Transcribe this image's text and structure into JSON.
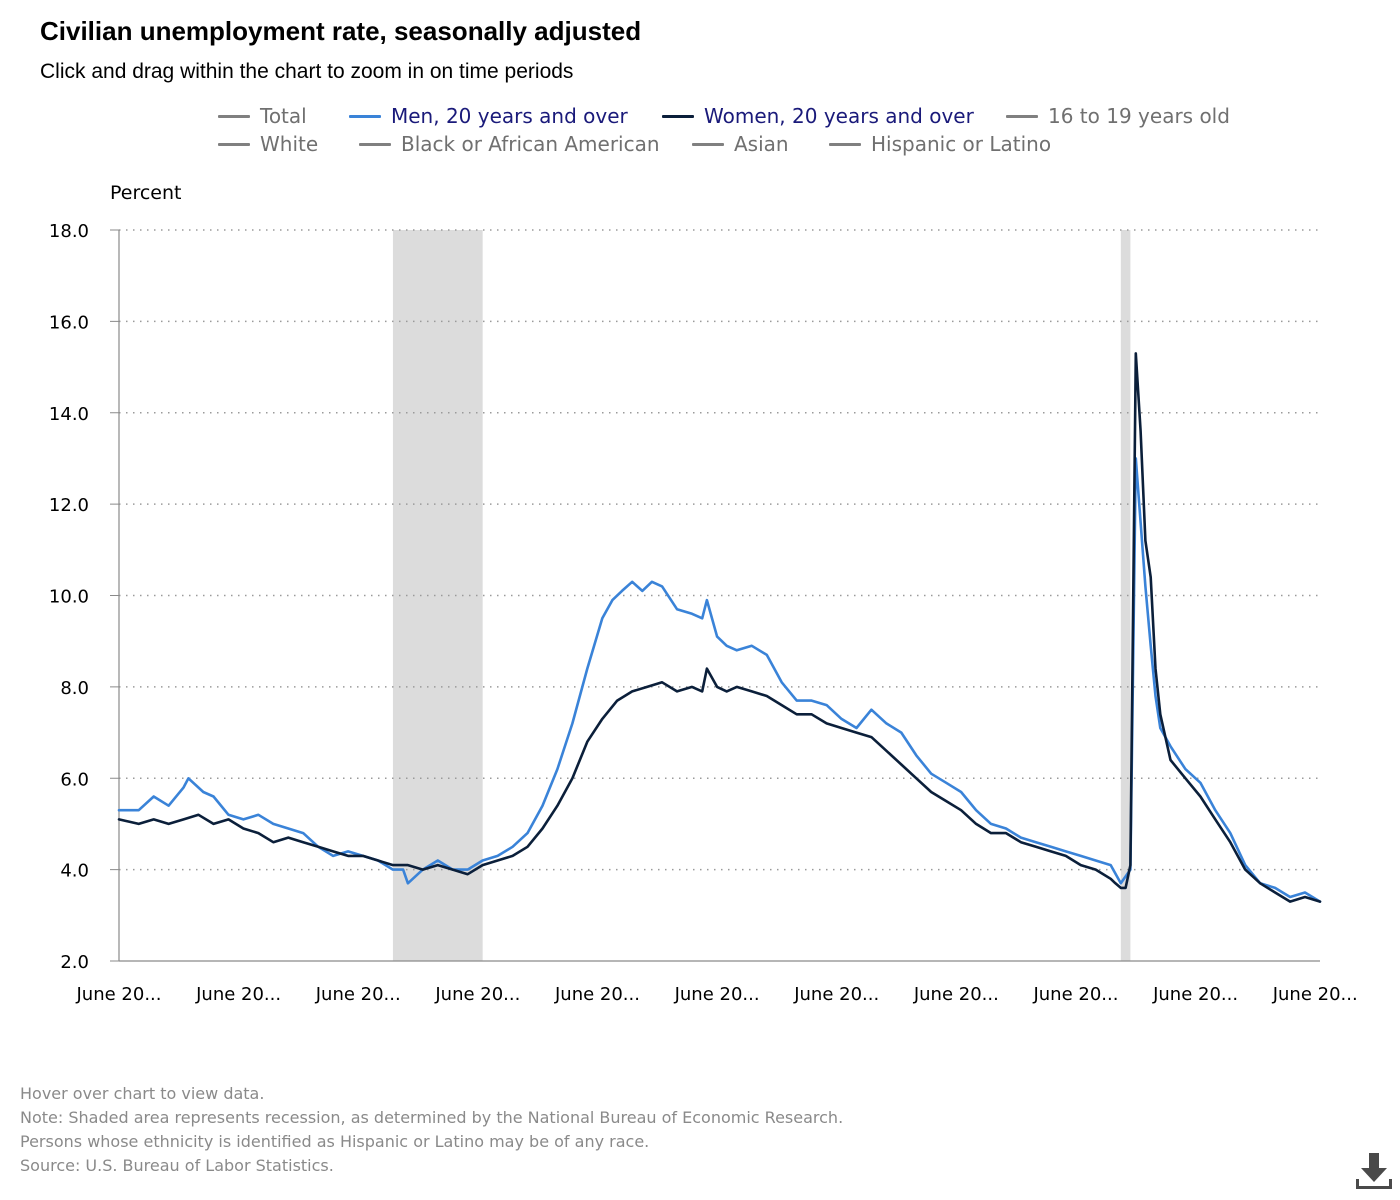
{
  "header": {
    "title": "Civilian unemployment rate, seasonally adjusted",
    "subtitle": "Click and drag within the chart to zoom in on time periods"
  },
  "legend": [
    {
      "label": "Total",
      "color": "#808080",
      "active": false
    },
    {
      "label": "Men, 20 years and over",
      "color": "#3A83D8",
      "active": true
    },
    {
      "label": "Women, 20 years and over",
      "color": "#0B1F3A",
      "active": true
    },
    {
      "label": "16 to 19 years old",
      "color": "#808080",
      "active": false
    },
    {
      "label": "White",
      "color": "#808080",
      "active": false
    },
    {
      "label": "Black or African American",
      "color": "#808080",
      "active": false
    },
    {
      "label": "Asian",
      "color": "#808080",
      "active": false
    },
    {
      "label": "Hispanic or Latino",
      "color": "#808080",
      "active": false
    }
  ],
  "chart_data": {
    "type": "line",
    "title": "Civilian unemployment rate, seasonally adjusted",
    "ylabel": "Percent",
    "xlabel": "",
    "ylim": [
      2.0,
      18.0
    ],
    "yticks": [
      "2.0",
      "4.0",
      "6.0",
      "8.0",
      "10.0",
      "12.0",
      "14.0",
      "16.0",
      "18.0"
    ],
    "xlim": [
      2003.42,
      2023.5
    ],
    "xticks": [
      {
        "x": 2003.42,
        "label": "June 20..."
      },
      {
        "x": 2005.42,
        "label": "June 20..."
      },
      {
        "x": 2007.42,
        "label": "June 20..."
      },
      {
        "x": 2009.42,
        "label": "June 20..."
      },
      {
        "x": 2011.42,
        "label": "June 20..."
      },
      {
        "x": 2013.42,
        "label": "June 20..."
      },
      {
        "x": 2015.42,
        "label": "June 20..."
      },
      {
        "x": 2017.42,
        "label": "June 20..."
      },
      {
        "x": 2019.42,
        "label": "June 20..."
      },
      {
        "x": 2021.42,
        "label": "June 20..."
      },
      {
        "x": 2023.42,
        "label": "June 20..."
      }
    ],
    "grid": true,
    "recessions": [
      {
        "start": 2008.0,
        "end": 2009.5
      },
      {
        "start": 2020.17,
        "end": 2020.33
      }
    ],
    "series": [
      {
        "name": "Men, 20 years and over",
        "color": "#3A83D8",
        "points": [
          [
            2003.42,
            5.3
          ],
          [
            2003.75,
            5.3
          ],
          [
            2004.0,
            5.6
          ],
          [
            2004.25,
            5.4
          ],
          [
            2004.5,
            5.8
          ],
          [
            2004.58,
            6.0
          ],
          [
            2004.83,
            5.7
          ],
          [
            2005.0,
            5.6
          ],
          [
            2005.25,
            5.2
          ],
          [
            2005.5,
            5.1
          ],
          [
            2005.75,
            5.2
          ],
          [
            2006.0,
            5.0
          ],
          [
            2006.25,
            4.9
          ],
          [
            2006.5,
            4.8
          ],
          [
            2006.75,
            4.5
          ],
          [
            2007.0,
            4.3
          ],
          [
            2007.25,
            4.4
          ],
          [
            2007.5,
            4.3
          ],
          [
            2007.75,
            4.2
          ],
          [
            2008.0,
            4.0
          ],
          [
            2008.17,
            4.0
          ],
          [
            2008.25,
            3.7
          ],
          [
            2008.5,
            4.0
          ],
          [
            2008.75,
            4.2
          ],
          [
            2009.0,
            4.0
          ],
          [
            2009.25,
            4.0
          ],
          [
            2009.5,
            4.2
          ],
          [
            2009.75,
            4.3
          ],
          [
            2010.0,
            4.5
          ],
          [
            2010.25,
            4.8
          ],
          [
            2010.5,
            5.4
          ],
          [
            2010.75,
            6.2
          ],
          [
            2011.0,
            7.2
          ],
          [
            2011.25,
            8.4
          ],
          [
            2011.5,
            9.5
          ],
          [
            2011.67,
            9.9
          ],
          [
            2011.83,
            10.1
          ],
          [
            2012.0,
            10.3
          ],
          [
            2012.17,
            10.1
          ],
          [
            2012.33,
            10.3
          ],
          [
            2012.5,
            10.2
          ],
          [
            2012.75,
            9.7
          ],
          [
            2013.0,
            9.6
          ],
          [
            2013.17,
            9.5
          ],
          [
            2013.25,
            9.9
          ],
          [
            2013.42,
            9.1
          ],
          [
            2013.58,
            8.9
          ],
          [
            2013.75,
            8.8
          ],
          [
            2014.0,
            8.9
          ],
          [
            2014.25,
            8.7
          ],
          [
            2014.5,
            8.1
          ],
          [
            2014.75,
            7.7
          ],
          [
            2015.0,
            7.7
          ],
          [
            2015.25,
            7.6
          ],
          [
            2015.5,
            7.3
          ],
          [
            2015.75,
            7.1
          ],
          [
            2016.0,
            7.5
          ],
          [
            2016.25,
            7.2
          ],
          [
            2016.5,
            7.0
          ],
          [
            2016.75,
            6.5
          ],
          [
            2017.0,
            6.1
          ],
          [
            2017.25,
            5.9
          ],
          [
            2017.5,
            5.7
          ],
          [
            2017.75,
            5.3
          ],
          [
            2018.0,
            5.0
          ],
          [
            2018.25,
            4.9
          ],
          [
            2018.5,
            4.7
          ],
          [
            2018.75,
            4.6
          ],
          [
            2019.0,
            4.5
          ],
          [
            2019.25,
            4.4
          ],
          [
            2019.5,
            4.3
          ],
          [
            2019.75,
            4.2
          ],
          [
            2020.0,
            4.1
          ],
          [
            2020.17,
            3.7
          ],
          [
            2020.33,
            4.0
          ],
          [
            2020.42,
            13.0
          ],
          [
            2020.5,
            11.6
          ],
          [
            2020.58,
            10.2
          ],
          [
            2020.67,
            8.9
          ],
          [
            2020.75,
            7.8
          ],
          [
            2020.83,
            7.1
          ],
          [
            2021.0,
            6.7
          ],
          [
            2021.25,
            6.2
          ],
          [
            2021.5,
            5.9
          ],
          [
            2021.75,
            5.3
          ],
          [
            2022.0,
            4.8
          ],
          [
            2022.25,
            4.1
          ],
          [
            2022.5,
            3.7
          ],
          [
            2022.75,
            3.6
          ],
          [
            2023.0,
            3.4
          ],
          [
            2023.25,
            3.5
          ],
          [
            2023.5,
            3.3
          ]
        ]
      },
      {
        "name": "Women, 20 years and over",
        "color": "#0B1F3A",
        "points": [
          [
            2003.42,
            5.1
          ],
          [
            2003.75,
            5.0
          ],
          [
            2004.0,
            5.1
          ],
          [
            2004.25,
            5.0
          ],
          [
            2004.5,
            5.1
          ],
          [
            2004.75,
            5.2
          ],
          [
            2005.0,
            5.0
          ],
          [
            2005.25,
            5.1
          ],
          [
            2005.5,
            4.9
          ],
          [
            2005.75,
            4.8
          ],
          [
            2006.0,
            4.6
          ],
          [
            2006.25,
            4.7
          ],
          [
            2006.5,
            4.6
          ],
          [
            2006.75,
            4.5
          ],
          [
            2007.0,
            4.4
          ],
          [
            2007.25,
            4.3
          ],
          [
            2007.5,
            4.3
          ],
          [
            2007.75,
            4.2
          ],
          [
            2008.0,
            4.1
          ],
          [
            2008.25,
            4.1
          ],
          [
            2008.5,
            4.0
          ],
          [
            2008.75,
            4.1
          ],
          [
            2009.0,
            4.0
          ],
          [
            2009.25,
            3.9
          ],
          [
            2009.5,
            4.1
          ],
          [
            2009.75,
            4.2
          ],
          [
            2010.0,
            4.3
          ],
          [
            2010.25,
            4.5
          ],
          [
            2010.5,
            4.9
          ],
          [
            2010.75,
            5.4
          ],
          [
            2011.0,
            6.0
          ],
          [
            2011.25,
            6.8
          ],
          [
            2011.5,
            7.3
          ],
          [
            2011.75,
            7.7
          ],
          [
            2012.0,
            7.9
          ],
          [
            2012.25,
            8.0
          ],
          [
            2012.5,
            8.1
          ],
          [
            2012.75,
            7.9
          ],
          [
            2013.0,
            8.0
          ],
          [
            2013.17,
            7.9
          ],
          [
            2013.25,
            8.4
          ],
          [
            2013.42,
            8.0
          ],
          [
            2013.58,
            7.9
          ],
          [
            2013.75,
            8.0
          ],
          [
            2014.0,
            7.9
          ],
          [
            2014.25,
            7.8
          ],
          [
            2014.5,
            7.6
          ],
          [
            2014.75,
            7.4
          ],
          [
            2015.0,
            7.4
          ],
          [
            2015.25,
            7.2
          ],
          [
            2015.5,
            7.1
          ],
          [
            2015.75,
            7.0
          ],
          [
            2016.0,
            6.9
          ],
          [
            2016.25,
            6.6
          ],
          [
            2016.5,
            6.3
          ],
          [
            2016.75,
            6.0
          ],
          [
            2017.0,
            5.7
          ],
          [
            2017.25,
            5.5
          ],
          [
            2017.5,
            5.3
          ],
          [
            2017.75,
            5.0
          ],
          [
            2018.0,
            4.8
          ],
          [
            2018.25,
            4.8
          ],
          [
            2018.5,
            4.6
          ],
          [
            2018.75,
            4.5
          ],
          [
            2019.0,
            4.4
          ],
          [
            2019.25,
            4.3
          ],
          [
            2019.5,
            4.1
          ],
          [
            2019.75,
            4.0
          ],
          [
            2020.0,
            3.8
          ],
          [
            2020.08,
            3.7
          ],
          [
            2020.17,
            3.6
          ],
          [
            2020.25,
            3.6
          ],
          [
            2020.33,
            4.1
          ],
          [
            2020.42,
            15.3
          ],
          [
            2020.5,
            13.6
          ],
          [
            2020.58,
            11.2
          ],
          [
            2020.67,
            10.4
          ],
          [
            2020.75,
            8.4
          ],
          [
            2020.83,
            7.4
          ],
          [
            2021.0,
            6.4
          ],
          [
            2021.25,
            6.0
          ],
          [
            2021.5,
            5.6
          ],
          [
            2021.75,
            5.1
          ],
          [
            2022.0,
            4.6
          ],
          [
            2022.25,
            4.0
          ],
          [
            2022.5,
            3.7
          ],
          [
            2022.75,
            3.5
          ],
          [
            2023.0,
            3.3
          ],
          [
            2023.25,
            3.4
          ],
          [
            2023.5,
            3.3
          ]
        ]
      }
    ]
  },
  "notes": [
    "Hover over chart to view data.",
    "Note: Shaded area represents recession, as determined by the National Bureau of Economic Research.",
    "Persons whose ethnicity is identified as Hispanic or Latino may be of any race.",
    "Source: U.S. Bureau of Labor Statistics."
  ],
  "toolbar": {
    "download_icon": "download-icon"
  }
}
